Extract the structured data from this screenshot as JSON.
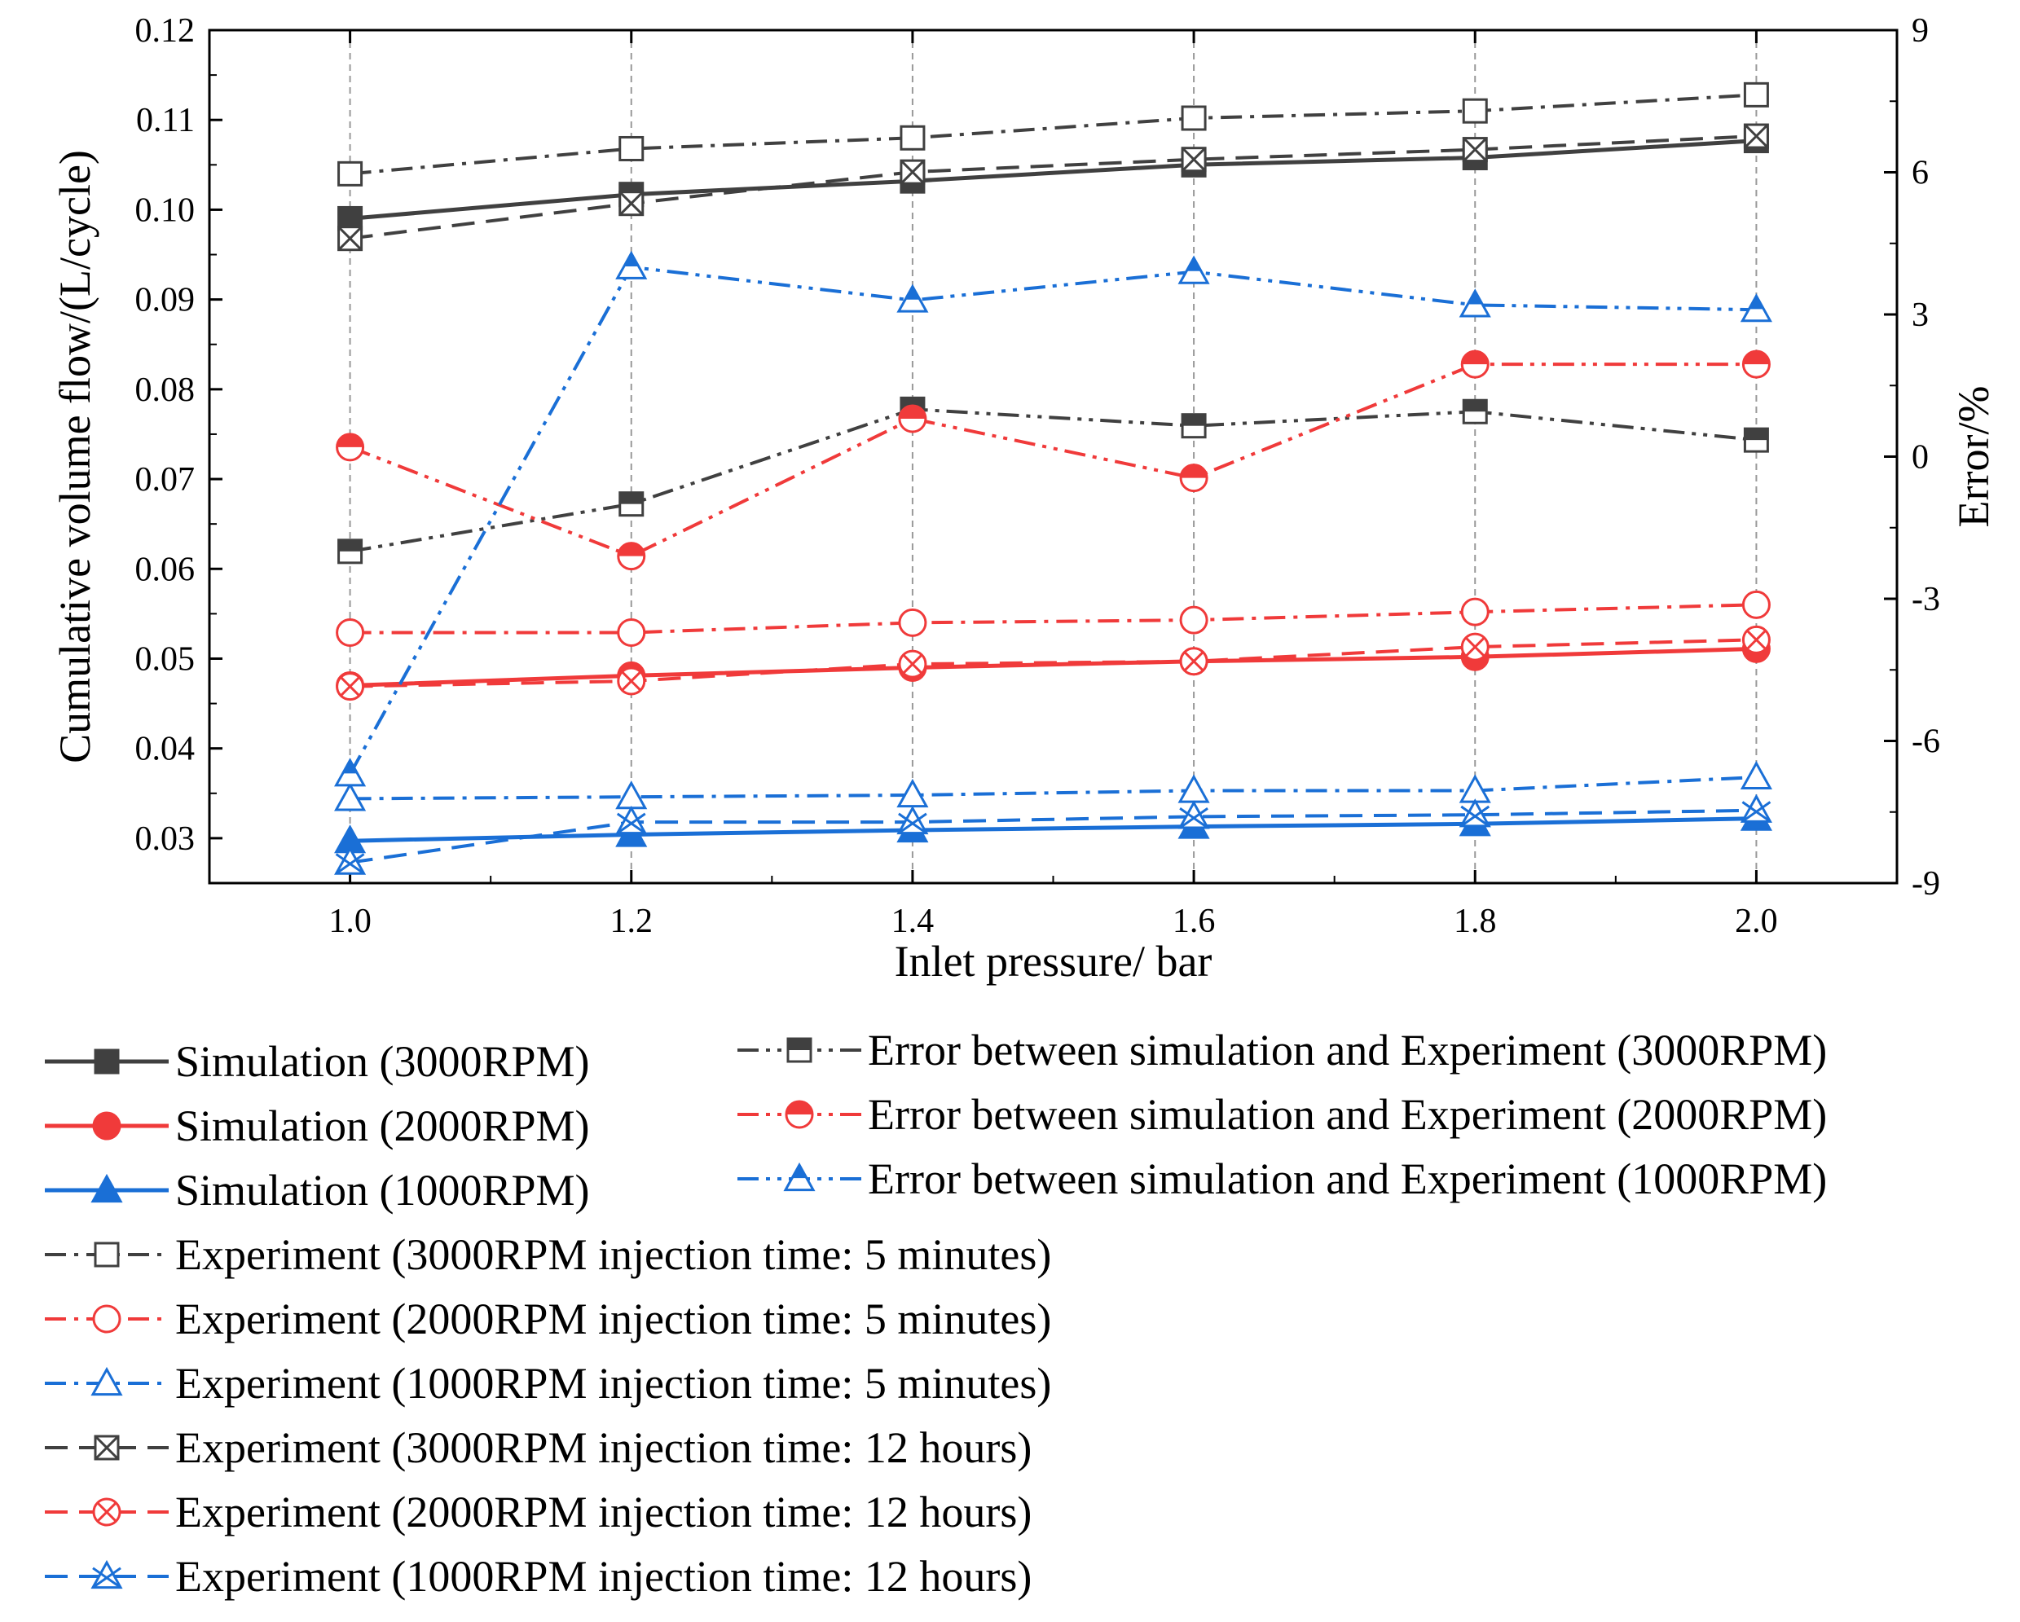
{
  "chart_data": {
    "type": "line",
    "xlabel": "Inlet pressure/ bar",
    "ylabel": "Cumulative volume flow/(L/cycle)",
    "y2label": "Error/%",
    "x": [
      1.0,
      1.2,
      1.4,
      1.6,
      1.8,
      2.0
    ],
    "xticks": [
      "1.0",
      "1.2",
      "1.4",
      "1.6",
      "1.8",
      "2.0"
    ],
    "xlim": [
      0.9,
      2.1
    ],
    "ylim": [
      0.025,
      0.12
    ],
    "yticks": [
      "0.03",
      "0.04",
      "0.05",
      "0.06",
      "0.07",
      "0.08",
      "0.09",
      "0.10",
      "0.11",
      "0.12"
    ],
    "y2lim": [
      -9,
      9
    ],
    "y2ticks": [
      "-9",
      "-6",
      "-3",
      "0",
      "3",
      "6",
      "9"
    ],
    "grid": "vertical dashed lines at x ticks",
    "colors": {
      "black": "#404040",
      "red": "#f03a3a",
      "blue": "#1a6fd6"
    },
    "series": [
      {
        "name": "Simulation (3000RPM)",
        "axis": "left",
        "color": "black",
        "marker": "square-filled",
        "line": "solid",
        "values": [
          0.099,
          0.1017,
          0.1032,
          0.105,
          0.1058,
          0.1077
        ]
      },
      {
        "name": "Simulation (2000RPM)",
        "axis": "left",
        "color": "red",
        "marker": "circle-filled",
        "line": "solid",
        "values": [
          0.047,
          0.0481,
          0.049,
          0.0497,
          0.0502,
          0.0511
        ]
      },
      {
        "name": "Simulation (1000RPM)",
        "axis": "left",
        "color": "blue",
        "marker": "triangle-filled",
        "line": "solid",
        "values": [
          0.0297,
          0.0304,
          0.0309,
          0.0313,
          0.0316,
          0.0322
        ]
      },
      {
        "name": "Experiment (3000RPM injection time: 5 minutes)",
        "axis": "left",
        "color": "black",
        "marker": "square-open",
        "line": "dashdot",
        "values": [
          0.104,
          0.1068,
          0.108,
          0.1102,
          0.111,
          0.1128
        ]
      },
      {
        "name": "Experiment (2000RPM injection time: 5 minutes)",
        "axis": "left",
        "color": "red",
        "marker": "circle-open",
        "line": "dashdot",
        "values": [
          0.0529,
          0.0529,
          0.054,
          0.0543,
          0.0552,
          0.056
        ]
      },
      {
        "name": "Experiment (1000RPM injection time: 5 minutes)",
        "axis": "left",
        "color": "blue",
        "marker": "triangle-open",
        "line": "dashdot",
        "values": [
          0.0344,
          0.0346,
          0.0348,
          0.0353,
          0.0353,
          0.0368
        ]
      },
      {
        "name": "Experiment (3000RPM injection time: 12 hours)",
        "axis": "left",
        "color": "black",
        "marker": "square-x",
        "line": "dashed",
        "values": [
          0.0968,
          0.1007,
          0.1042,
          0.1056,
          0.1067,
          0.1082
        ]
      },
      {
        "name": "Experiment (2000RPM injection time: 12 hours)",
        "axis": "left",
        "color": "red",
        "marker": "circle-x",
        "line": "dashed",
        "values": [
          0.0469,
          0.0475,
          0.0494,
          0.0497,
          0.0513,
          0.0521
        ]
      },
      {
        "name": "Experiment (1000RPM injection time: 12 hours)",
        "axis": "left",
        "color": "blue",
        "marker": "triangle-x",
        "line": "dashed",
        "values": [
          0.0273,
          0.0318,
          0.0318,
          0.0324,
          0.0326,
          0.0331
        ]
      },
      {
        "name": "Error between simulation and Experiment (3000RPM)",
        "axis": "right",
        "color": "black",
        "marker": "square-half",
        "line": "dashdotdot",
        "values": [
          -2.0,
          -1.0,
          1.0,
          0.65,
          0.95,
          0.35
        ]
      },
      {
        "name": "Error between simulation and Experiment (2000RPM)",
        "axis": "right",
        "color": "red",
        "marker": "circle-half",
        "line": "dashdotdot",
        "values": [
          0.2,
          -2.1,
          0.8,
          -0.45,
          1.95,
          1.95
        ]
      },
      {
        "name": "Error between simulation and Experiment (1000RPM)",
        "axis": "right",
        "color": "blue",
        "marker": "triangle-half",
        "line": "dashdotdot",
        "values": [
          -6.7,
          4.0,
          3.3,
          3.9,
          3.2,
          3.1
        ]
      }
    ],
    "legend": {
      "placement": "below-plot",
      "columns": [
        [
          "Simulation (3000RPM)",
          "Simulation (2000RPM)",
          "Simulation (1000RPM)",
          "Experiment (3000RPM injection time: 5 minutes)",
          "Experiment (2000RPM injection time: 5 minutes)",
          "Experiment (1000RPM injection time: 5 minutes)",
          "Experiment (3000RPM injection time: 12 hours)",
          "Experiment (2000RPM injection time: 12 hours)",
          "Experiment (1000RPM injection time: 12 hours)"
        ],
        [
          "Error between simulation and Experiment (3000RPM)",
          "Error between simulation and Experiment (2000RPM)",
          "Error between simulation and Experiment (1000RPM)"
        ]
      ]
    }
  }
}
